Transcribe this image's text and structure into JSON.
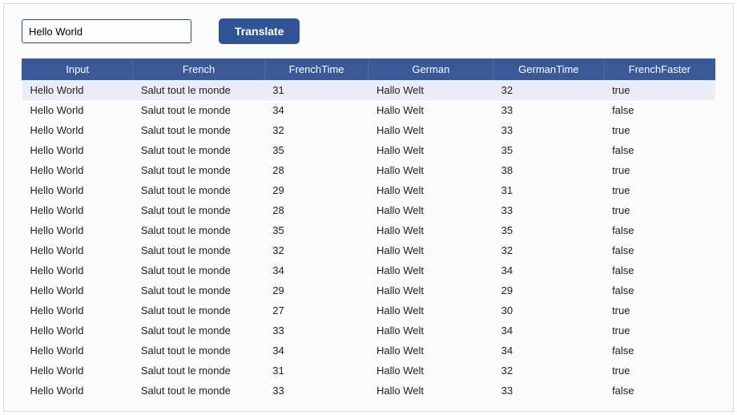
{
  "input": {
    "value": "Hello World"
  },
  "button": {
    "label": "Translate"
  },
  "colors": {
    "header_bg": "#3a5998",
    "header_fg": "#ffffff",
    "row_selected_bg": "#e9edf5",
    "button_bg": "#2f5597",
    "button_fg": "#ffffff",
    "input_border": "#1e4ea1",
    "frame_border": "#dcdcdc",
    "frame_bg": "#fcfcfc",
    "text_color": "#212121"
  },
  "table": {
    "columns": [
      "Input",
      "French",
      "FrenchTime",
      "German",
      "GermanTime",
      "FrenchFaster"
    ],
    "column_widths_pct": [
      16,
      19,
      15,
      18,
      16,
      16
    ],
    "selected_row": 0,
    "rows": [
      [
        "Hello World",
        "Salut tout le monde",
        "31",
        "Hallo Welt",
        "32",
        "true"
      ],
      [
        "Hello World",
        "Salut tout le monde",
        "34",
        "Hallo Welt",
        "33",
        "false"
      ],
      [
        "Hello World",
        "Salut tout le monde",
        "32",
        "Hallo Welt",
        "33",
        "true"
      ],
      [
        "Hello World",
        "Salut tout le monde",
        "35",
        "Hallo Welt",
        "35",
        "false"
      ],
      [
        "Hello World",
        "Salut tout le monde",
        "28",
        "Hallo Welt",
        "38",
        "true"
      ],
      [
        "Hello World",
        "Salut tout le monde",
        "29",
        "Hallo Welt",
        "31",
        "true"
      ],
      [
        "Hello World",
        "Salut tout le monde",
        "28",
        "Hallo Welt",
        "33",
        "true"
      ],
      [
        "Hello World",
        "Salut tout le monde",
        "35",
        "Hallo Welt",
        "35",
        "false"
      ],
      [
        "Hello World",
        "Salut tout le monde",
        "32",
        "Hallo Welt",
        "32",
        "false"
      ],
      [
        "Hello World",
        "Salut tout le monde",
        "34",
        "Hallo Welt",
        "34",
        "false"
      ],
      [
        "Hello World",
        "Salut tout le monde",
        "29",
        "Hallo Welt",
        "29",
        "false"
      ],
      [
        "Hello World",
        "Salut tout le monde",
        "27",
        "Hallo Welt",
        "30",
        "true"
      ],
      [
        "Hello World",
        "Salut tout le monde",
        "33",
        "Hallo Welt",
        "34",
        "true"
      ],
      [
        "Hello World",
        "Salut tout le monde",
        "34",
        "Hallo Welt",
        "34",
        "false"
      ],
      [
        "Hello World",
        "Salut tout le monde",
        "31",
        "Hallo Welt",
        "32",
        "true"
      ],
      [
        "Hello World",
        "Salut tout le monde",
        "33",
        "Hallo Welt",
        "33",
        "false"
      ]
    ]
  }
}
